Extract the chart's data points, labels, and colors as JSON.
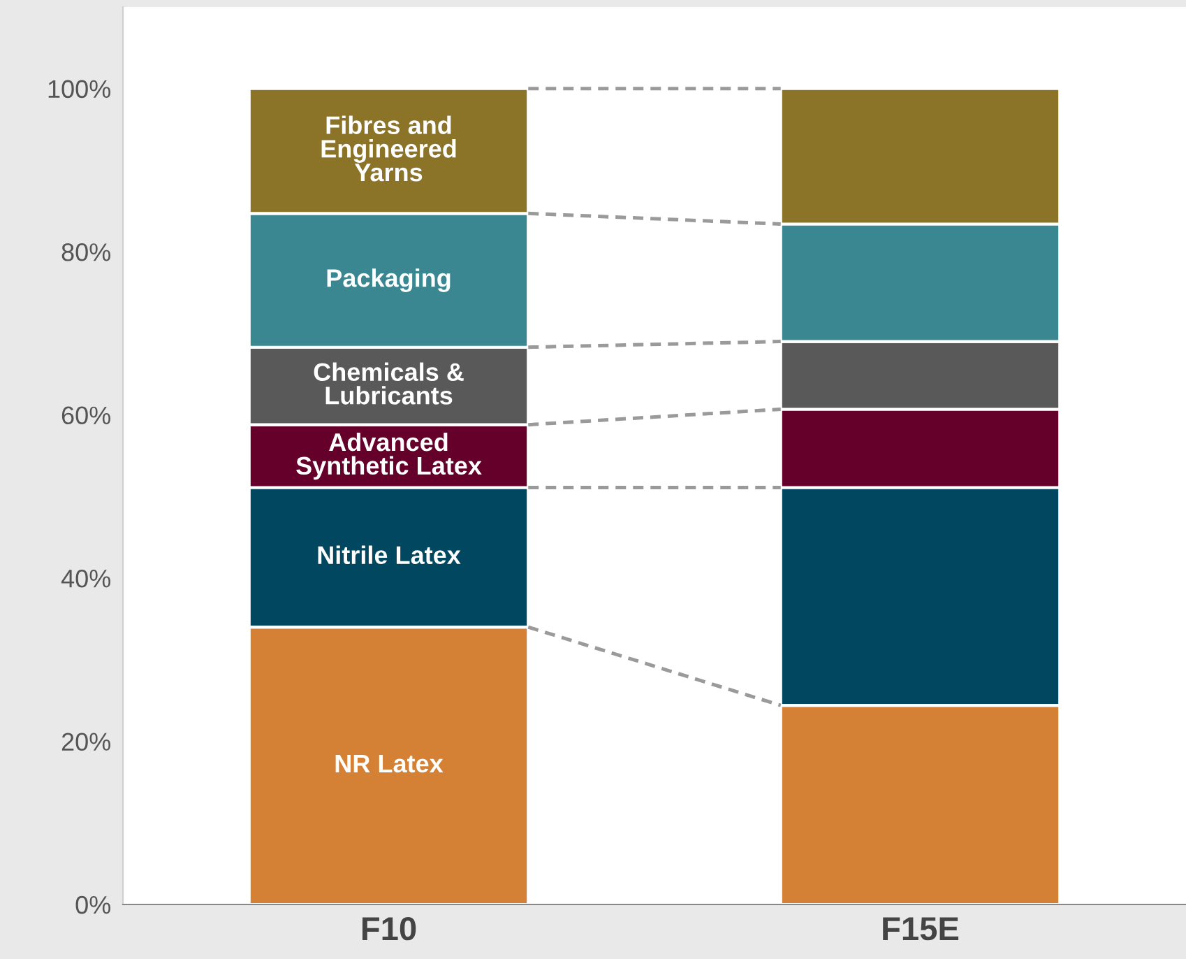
{
  "chart_data": {
    "type": "bar",
    "stacked": true,
    "categories": [
      "F10",
      "F15E"
    ],
    "series": [
      {
        "name": "NR Latex",
        "color": "#d48035",
        "values": [
          34.0,
          24.4
        ]
      },
      {
        "name": "Nitrile Latex",
        "color": "#00475f",
        "values": [
          17.1,
          26.7
        ]
      },
      {
        "name": "Advanced\nSynthetic Latex",
        "color": "#65002a",
        "values": [
          7.7,
          9.6
        ]
      },
      {
        "name": "Chemicals &\nLubricants",
        "color": "#595959",
        "values": [
          9.5,
          8.3
        ]
      },
      {
        "name": "Packaging",
        "color": "#3a8791",
        "values": [
          16.4,
          14.4
        ]
      },
      {
        "name": "Fibres and\nEngineered\nYarns",
        "color": "#8b7327",
        "values": [
          15.3,
          16.6
        ]
      }
    ],
    "ylim": [
      0,
      110
    ],
    "yticks": [
      {
        "value": 0,
        "label": "0%"
      },
      {
        "value": 20,
        "label": "20%"
      },
      {
        "value": 40,
        "label": "40%"
      },
      {
        "value": 60,
        "label": "60%"
      },
      {
        "value": 80,
        "label": "80%"
      },
      {
        "value": 100,
        "label": "100%"
      }
    ],
    "grid": false,
    "legend": false
  }
}
